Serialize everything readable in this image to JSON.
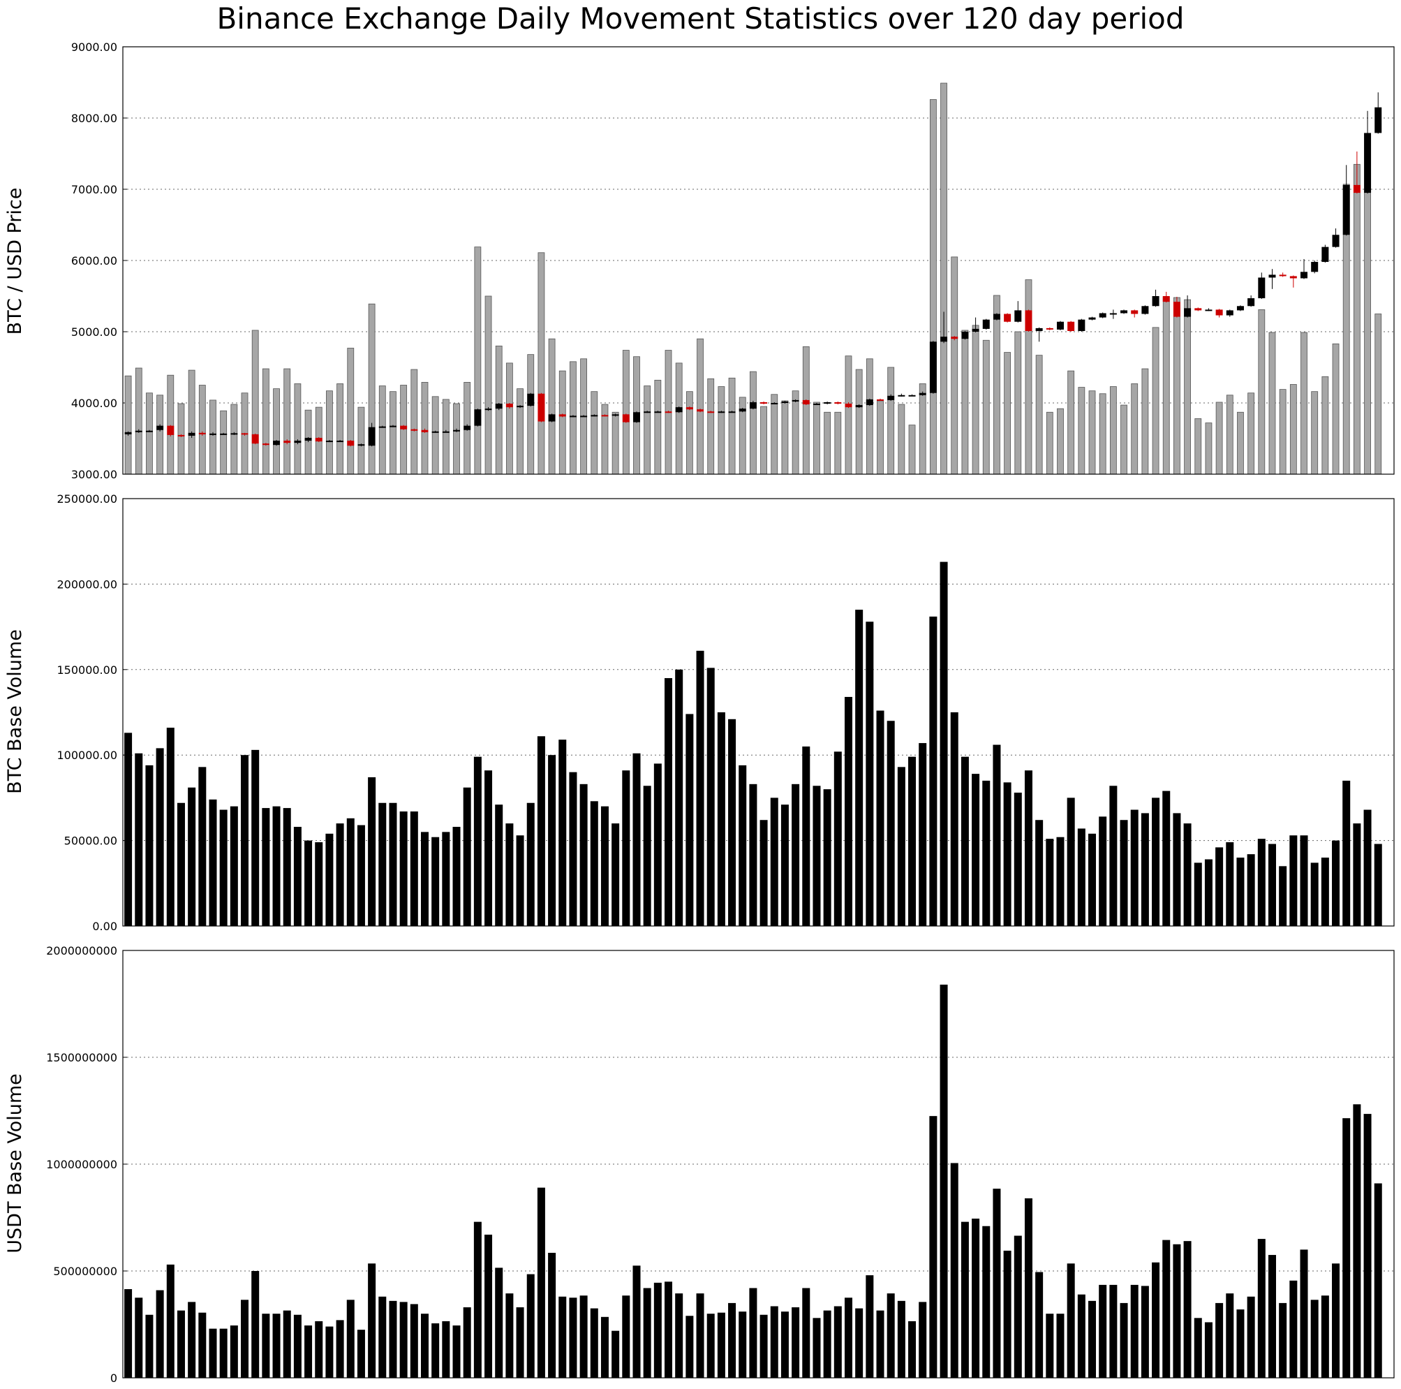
{
  "chart_data": [
    {
      "type": "candlestick+bar",
      "title": "Binance Exchange Daily Movement Statistics over 120 day period",
      "ylabel": "BTC / USD Price",
      "ylim": [
        3000,
        9000
      ],
      "yticks": [
        "3000.00",
        "4000.00",
        "5000.00",
        "6000.00",
        "7000.00",
        "8000.00",
        "9000.00"
      ],
      "grid": true,
      "background_bars": [
        4380,
        4490,
        4140,
        4110,
        4390,
        3990,
        4460,
        4250,
        4040,
        3890,
        3980,
        4140,
        5020,
        4480,
        4200,
        4480,
        4270,
        3900,
        3940,
        4170,
        4270,
        4770,
        3940,
        5390,
        4240,
        4160,
        4250,
        4470,
        4290,
        4090,
        4050,
        3990,
        4290,
        6190,
        5500,
        4800,
        4560,
        4200,
        4680,
        6110,
        4900,
        4450,
        4580,
        4620,
        4160,
        3980,
        3870,
        4740,
        4650,
        4240,
        4320,
        4740,
        4560,
        4160,
        4900,
        4340,
        4230,
        4350,
        4080,
        4440,
        3950,
        4120,
        4030,
        4170,
        4790,
        4010,
        3870,
        3870,
        4660,
        4470,
        4620,
        4030,
        4500,
        3980,
        3690,
        4270,
        8260,
        8490,
        6050,
        5020,
        5090,
        4880,
        5510,
        4710,
        5000,
        5730,
        4670,
        3870,
        3920,
        4450,
        4220,
        4170,
        4130,
        4230,
        3970,
        4270,
        4480,
        5060,
        5480,
        5480,
        5450,
        3780,
        3720,
        4010,
        4110,
        3870,
        4140,
        5310,
        4990,
        4190,
        4260,
        4990,
        4160,
        4370,
        4830,
        7070,
        7350,
        6960,
        5250
      ],
      "candles": [
        [
          3560,
          3590,
          3540,
          3600
        ],
        [
          3590,
          3610,
          3580,
          3630
        ],
        [
          3600,
          3610,
          3590,
          3620
        ],
        [
          3620,
          3680,
          3600,
          3700
        ],
        [
          3680,
          3550,
          3530,
          3690
        ],
        [
          3550,
          3540,
          3520,
          3560
        ],
        [
          3540,
          3580,
          3510,
          3600
        ],
        [
          3580,
          3560,
          3540,
          3600
        ],
        [
          3560,
          3570,
          3540,
          3590
        ],
        [
          3570,
          3570,
          3550,
          3580
        ],
        [
          3570,
          3575,
          3550,
          3590
        ],
        [
          3575,
          3560,
          3540,
          3580
        ],
        [
          3560,
          3430,
          3420,
          3570
        ],
        [
          3430,
          3410,
          3400,
          3440
        ],
        [
          3410,
          3470,
          3400,
          3480
        ],
        [
          3470,
          3440,
          3420,
          3490
        ],
        [
          3440,
          3470,
          3420,
          3490
        ],
        [
          3470,
          3510,
          3450,
          3520
        ],
        [
          3510,
          3460,
          3450,
          3520
        ],
        [
          3460,
          3470,
          3450,
          3480
        ],
        [
          3470,
          3470,
          3460,
          3480
        ],
        [
          3470,
          3400,
          3390,
          3480
        ],
        [
          3400,
          3420,
          3390,
          3430
        ],
        [
          3400,
          3660,
          3390,
          3720
        ],
        [
          3660,
          3670,
          3650,
          3680
        ],
        [
          3670,
          3680,
          3660,
          3690
        ],
        [
          3680,
          3630,
          3620,
          3690
        ],
        [
          3630,
          3620,
          3600,
          3640
        ],
        [
          3620,
          3590,
          3580,
          3640
        ],
        [
          3590,
          3600,
          3580,
          3610
        ],
        [
          3600,
          3600,
          3590,
          3620
        ],
        [
          3600,
          3620,
          3590,
          3640
        ],
        [
          3620,
          3680,
          3610,
          3700
        ],
        [
          3680,
          3910,
          3670,
          3920
        ],
        [
          3910,
          3920,
          3890,
          3940
        ],
        [
          3920,
          3990,
          3900,
          4000
        ],
        [
          3990,
          3940,
          3920,
          4000
        ],
        [
          3940,
          3960,
          3930,
          3970
        ],
        [
          3960,
          4130,
          3950,
          4140
        ],
        [
          4130,
          3740,
          3730,
          4140
        ],
        [
          3740,
          3840,
          3730,
          3850
        ],
        [
          3840,
          3810,
          3800,
          3850
        ],
        [
          3810,
          3820,
          3800,
          3830
        ],
        [
          3820,
          3820,
          3810,
          3830
        ],
        [
          3820,
          3830,
          3810,
          3840
        ],
        [
          3830,
          3820,
          3810,
          3840
        ],
        [
          3820,
          3840,
          3810,
          3850
        ],
        [
          3840,
          3730,
          3720,
          3850
        ],
        [
          3730,
          3870,
          3720,
          3880
        ],
        [
          3870,
          3880,
          3860,
          3890
        ],
        [
          3880,
          3880,
          3870,
          3890
        ],
        [
          3880,
          3870,
          3860,
          3890
        ],
        [
          3870,
          3940,
          3860,
          3950
        ],
        [
          3940,
          3910,
          3900,
          3950
        ],
        [
          3910,
          3880,
          3870,
          3920
        ],
        [
          3880,
          3870,
          3860,
          3890
        ],
        [
          3870,
          3880,
          3860,
          3890
        ],
        [
          3880,
          3880,
          3870,
          3890
        ],
        [
          3880,
          3920,
          3870,
          3930
        ],
        [
          3920,
          4010,
          3910,
          4030
        ],
        [
          4010,
          3990,
          3980,
          4020
        ],
        [
          3990,
          4000,
          3980,
          4010
        ],
        [
          4000,
          4020,
          3990,
          4030
        ],
        [
          4020,
          4040,
          4010,
          4050
        ],
        [
          4040,
          3980,
          3970,
          4050
        ],
        [
          3980,
          3990,
          3970,
          4000
        ],
        [
          3990,
          4010,
          3980,
          4020
        ],
        [
          4010,
          3990,
          3980,
          4020
        ],
        [
          3990,
          3940,
          3930,
          4010
        ],
        [
          3940,
          3970,
          3930,
          3980
        ],
        [
          3970,
          4050,
          3960,
          4060
        ],
        [
          4050,
          4040,
          4030,
          4060
        ],
        [
          4040,
          4100,
          4030,
          4120
        ],
        [
          4100,
          4110,
          4090,
          4130
        ],
        [
          4110,
          4110,
          4100,
          4120
        ],
        [
          4110,
          4140,
          4100,
          4160
        ],
        [
          4140,
          4860,
          4130,
          4870
        ],
        [
          4860,
          4930,
          4840,
          5280
        ],
        [
          4930,
          4900,
          4880,
          4940
        ],
        [
          4900,
          5000,
          4890,
          5010
        ],
        [
          5000,
          5040,
          4990,
          5200
        ],
        [
          5040,
          5170,
          5030,
          5180
        ],
        [
          5170,
          5250,
          5160,
          5260
        ],
        [
          5250,
          5140,
          5130,
          5260
        ],
        [
          5140,
          5300,
          5130,
          5430
        ],
        [
          5300,
          5010,
          5000,
          5310
        ],
        [
          5010,
          5050,
          4860,
          5060
        ],
        [
          5050,
          5030,
          5020,
          5060
        ],
        [
          5030,
          5140,
          5020,
          5150
        ],
        [
          5140,
          5010,
          5000,
          5150
        ],
        [
          5010,
          5170,
          5000,
          5180
        ],
        [
          5170,
          5200,
          5160,
          5210
        ],
        [
          5200,
          5260,
          5190,
          5270
        ],
        [
          5260,
          5260,
          5180,
          5310
        ],
        [
          5260,
          5300,
          5250,
          5310
        ],
        [
          5300,
          5250,
          5200,
          5310
        ],
        [
          5250,
          5360,
          5240,
          5370
        ],
        [
          5360,
          5500,
          5350,
          5590
        ],
        [
          5500,
          5420,
          5410,
          5560
        ],
        [
          5420,
          5210,
          5200,
          5490
        ],
        [
          5210,
          5330,
          5200,
          5510
        ],
        [
          5330,
          5300,
          5290,
          5340
        ],
        [
          5300,
          5310,
          5290,
          5330
        ],
        [
          5310,
          5230,
          5200,
          5320
        ],
        [
          5230,
          5300,
          5210,
          5310
        ],
        [
          5300,
          5360,
          5290,
          5370
        ],
        [
          5360,
          5470,
          5350,
          5510
        ],
        [
          5470,
          5760,
          5460,
          5830
        ],
        [
          5760,
          5800,
          5600,
          5880
        ],
        [
          5800,
          5780,
          5770,
          5830
        ],
        [
          5780,
          5750,
          5620,
          5790
        ],
        [
          5750,
          5840,
          5740,
          6020
        ],
        [
          5840,
          5980,
          5820,
          6000
        ],
        [
          5980,
          6190,
          5970,
          6220
        ],
        [
          6190,
          6360,
          6180,
          6450
        ],
        [
          6360,
          7060,
          6350,
          7340
        ],
        [
          7060,
          6950,
          6940,
          7530
        ],
        [
          6950,
          7790,
          6940,
          8100
        ],
        [
          7790,
          8150,
          7780,
          8360
        ]
      ],
      "candle_colors": {
        "up": "#000000",
        "down": "#cc0000",
        "background_bar": "#a6a6a6"
      }
    },
    {
      "type": "bar",
      "ylabel": "BTC Base Volume",
      "ylim": [
        0,
        250000
      ],
      "yticks": [
        "0.00",
        "50000.00",
        "100000.00",
        "150000.00",
        "200000.00",
        "250000.00"
      ],
      "grid": true,
      "values": [
        113000,
        101000,
        94000,
        104000,
        116000,
        72000,
        81000,
        93000,
        74000,
        68000,
        70000,
        100000,
        103000,
        69000,
        70000,
        69000,
        58000,
        50000,
        49000,
        54000,
        60000,
        63000,
        59000,
        87000,
        72000,
        72000,
        67000,
        67000,
        55000,
        52000,
        55000,
        58000,
        81000,
        99000,
        91000,
        71000,
        60000,
        53000,
        72000,
        111000,
        100000,
        109000,
        90000,
        83000,
        73000,
        70000,
        60000,
        91000,
        101000,
        82000,
        95000,
        145000,
        150000,
        124000,
        161000,
        151000,
        125000,
        121000,
        94000,
        83000,
        62000,
        75000,
        71000,
        83000,
        105000,
        82000,
        80000,
        102000,
        134000,
        185000,
        178000,
        126000,
        120000,
        93000,
        99000,
        107000,
        181000,
        213000,
        125000,
        99000,
        89000,
        85000,
        106000,
        84000,
        78000,
        91000,
        62000,
        51000,
        52000,
        75000,
        57000,
        54000,
        64000,
        82000,
        62000,
        68000,
        66000,
        75000,
        79000,
        66000,
        60000,
        37000,
        39000,
        46000,
        49000,
        40000,
        42000,
        51000,
        48000,
        35000,
        53000,
        53000,
        37000,
        40000,
        50000,
        85000,
        60000,
        68000,
        48000
      ],
      "bar_color": "#000000"
    },
    {
      "type": "bar",
      "ylabel": "USDT Base Volume",
      "ylim": [
        0,
        2000000000
      ],
      "yticks": [
        "0",
        "500000000",
        "1000000000",
        "1500000000",
        "2000000000"
      ],
      "grid": true,
      "values": [
        415000000,
        375000000,
        295000000,
        410000000,
        530000000,
        315000000,
        355000000,
        305000000,
        230000000,
        230000000,
        245000000,
        365000000,
        500000000,
        300000000,
        300000000,
        315000000,
        295000000,
        245000000,
        265000000,
        240000000,
        270000000,
        365000000,
        225000000,
        535000000,
        380000000,
        360000000,
        355000000,
        345000000,
        300000000,
        255000000,
        265000000,
        245000000,
        330000000,
        730000000,
        670000000,
        515000000,
        395000000,
        330000000,
        485000000,
        890000000,
        585000000,
        380000000,
        375000000,
        385000000,
        325000000,
        285000000,
        220000000,
        385000000,
        525000000,
        420000000,
        445000000,
        450000000,
        395000000,
        290000000,
        395000000,
        300000000,
        305000000,
        350000000,
        310000000,
        420000000,
        295000000,
        335000000,
        310000000,
        330000000,
        420000000,
        280000000,
        315000000,
        335000000,
        375000000,
        325000000,
        480000000,
        315000000,
        395000000,
        360000000,
        265000000,
        355000000,
        1225000000,
        1840000000,
        1005000000,
        730000000,
        745000000,
        710000000,
        885000000,
        595000000,
        665000000,
        840000000,
        495000000,
        300000000,
        300000000,
        535000000,
        390000000,
        360000000,
        435000000,
        435000000,
        350000000,
        435000000,
        430000000,
        540000000,
        645000000,
        625000000,
        640000000,
        280000000,
        260000000,
        350000000,
        395000000,
        320000000,
        380000000,
        650000000,
        575000000,
        350000000,
        455000000,
        600000000,
        365000000,
        385000000,
        535000000,
        1215000000,
        1280000000,
        1235000000,
        910000000
      ],
      "bar_color": "#000000"
    }
  ]
}
